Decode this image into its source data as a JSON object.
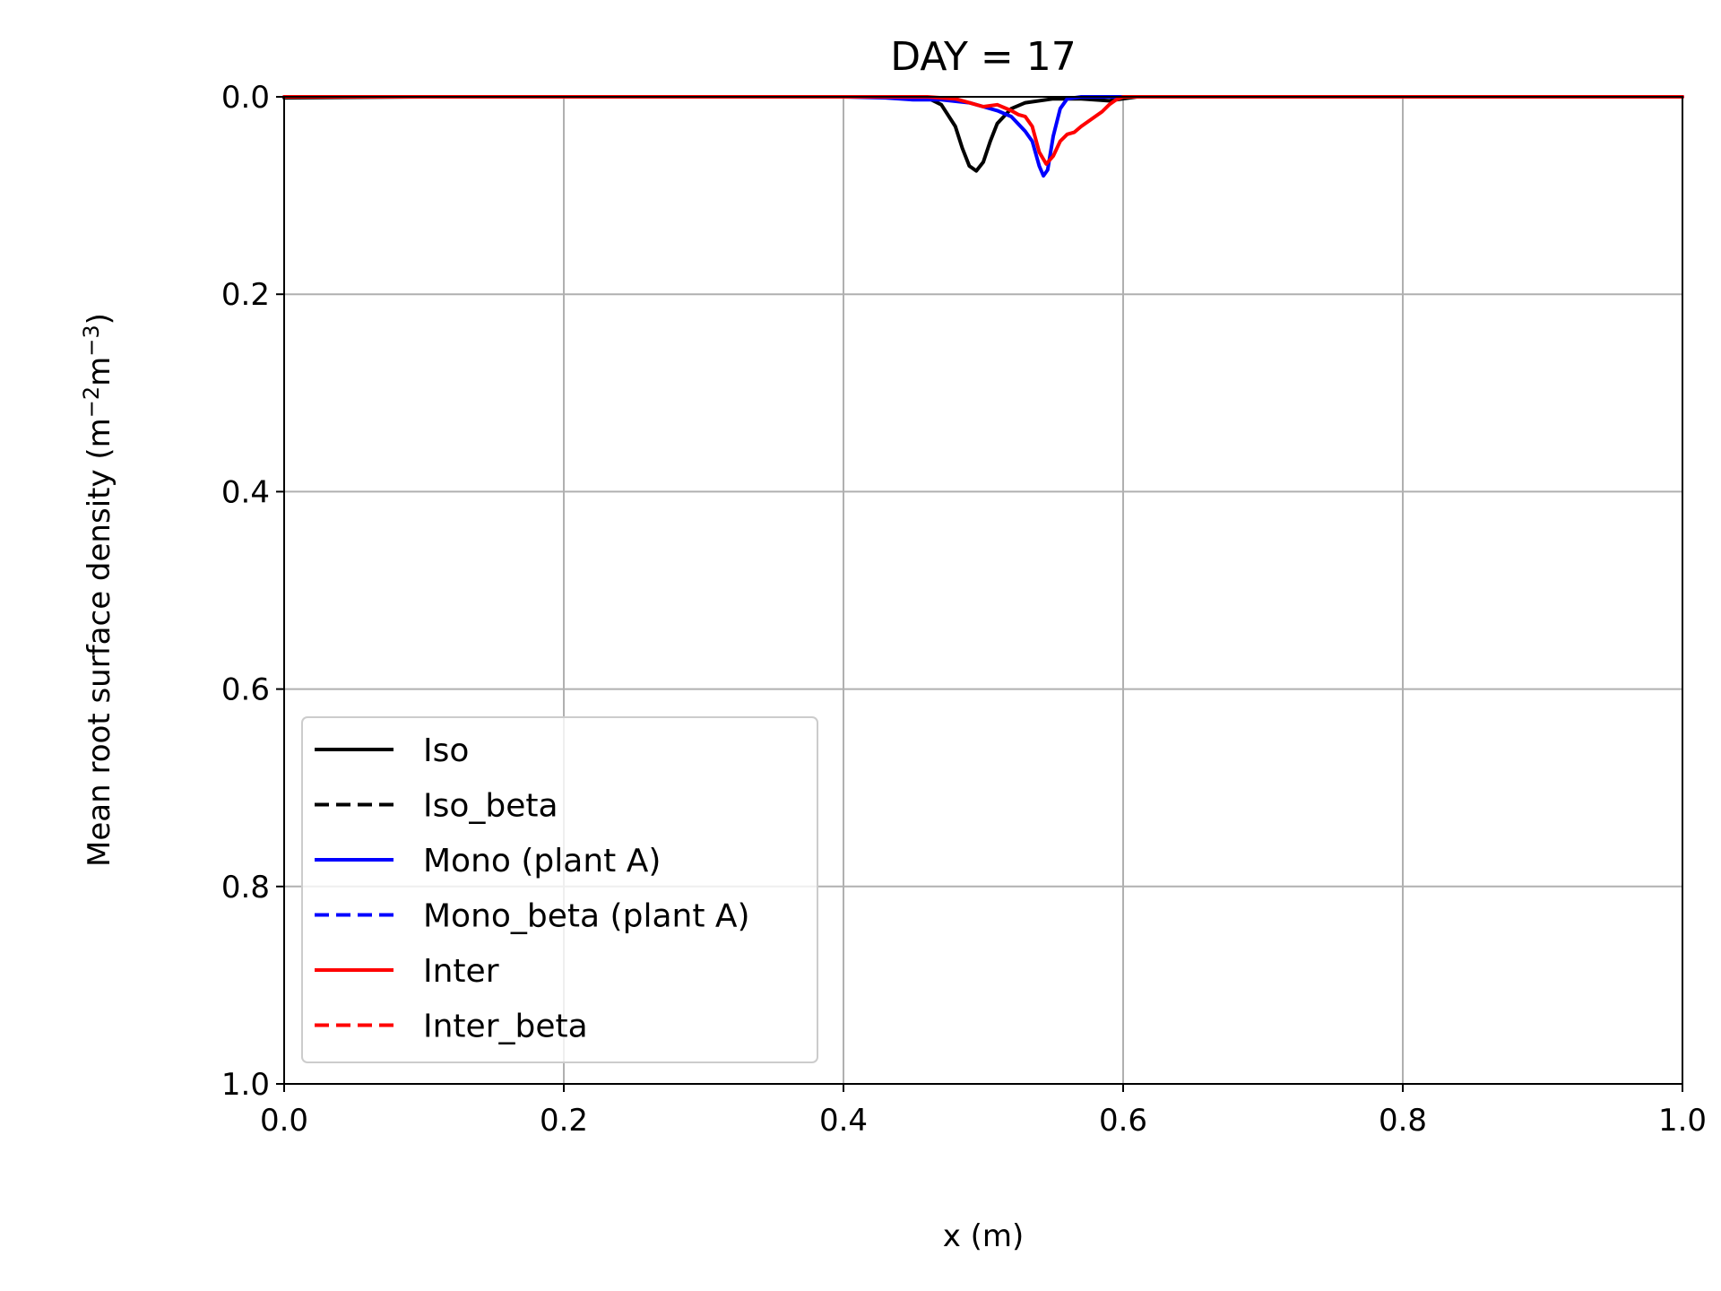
{
  "chart_data": {
    "type": "line",
    "title": "DAY = 17",
    "xlabel": "x (m)",
    "ylabel": {
      "text": "Mean root surface density (m",
      "sup1": "−2",
      "mid": "m",
      "sup2": "−3",
      "end": ")"
    },
    "xlim": [
      0.0,
      1.0
    ],
    "ylim": [
      0.0,
      1.0
    ],
    "y_inverted": true,
    "grid": true,
    "legend_position": "lower-left",
    "xticks": [
      "0.0",
      "0.2",
      "0.4",
      "0.6",
      "0.8",
      "1.0"
    ],
    "yticks": [
      "0.0",
      "0.2",
      "0.4",
      "0.6",
      "0.8",
      "1.0"
    ],
    "series": [
      {
        "name": "Iso",
        "color": "#000000",
        "dash": "solid",
        "x": [
          0.0,
          0.1,
          0.3,
          0.44,
          0.46,
          0.47,
          0.48,
          0.485,
          0.49,
          0.495,
          0.5,
          0.505,
          0.51,
          0.52,
          0.53,
          0.55,
          0.57,
          0.59,
          0.6,
          0.61,
          0.7,
          1.0
        ],
        "y": [
          0.001,
          0.0,
          0.0,
          0.0,
          0.001,
          0.008,
          0.03,
          0.052,
          0.07,
          0.075,
          0.066,
          0.045,
          0.027,
          0.012,
          0.006,
          0.002,
          0.002,
          0.004,
          0.002,
          0.0,
          0.0,
          0.0
        ]
      },
      {
        "name": "Iso_beta",
        "color": "#000000",
        "dash": "dashed",
        "x": [],
        "y": []
      },
      {
        "name": "Mono (plant A)",
        "color": "#0000ff",
        "dash": "solid",
        "x": [
          0.0,
          0.4,
          0.43,
          0.45,
          0.47,
          0.49,
          0.5,
          0.51,
          0.52,
          0.53,
          0.535,
          0.54,
          0.543,
          0.546,
          0.55,
          0.555,
          0.56,
          0.57,
          0.6,
          1.0
        ],
        "y": [
          0.0,
          0.0,
          0.001,
          0.003,
          0.003,
          0.006,
          0.01,
          0.014,
          0.02,
          0.035,
          0.045,
          0.07,
          0.08,
          0.074,
          0.04,
          0.012,
          0.002,
          0.0,
          0.0,
          0.0
        ]
      },
      {
        "name": "Mono_beta (plant A)",
        "color": "#0000ff",
        "dash": "dashed",
        "x": [],
        "y": []
      },
      {
        "name": "Inter",
        "color": "#ff0000",
        "dash": "solid",
        "x": [
          0.0,
          0.1,
          0.3,
          0.46,
          0.48,
          0.49,
          0.5,
          0.51,
          0.52,
          0.525,
          0.53,
          0.535,
          0.54,
          0.545,
          0.55,
          0.555,
          0.56,
          0.565,
          0.57,
          0.575,
          0.58,
          0.585,
          0.59,
          0.595,
          0.6,
          0.61,
          1.0
        ],
        "y": [
          0.0,
          0.0,
          0.0,
          0.0,
          0.002,
          0.006,
          0.01,
          0.008,
          0.014,
          0.018,
          0.02,
          0.03,
          0.056,
          0.068,
          0.06,
          0.045,
          0.038,
          0.036,
          0.03,
          0.025,
          0.02,
          0.015,
          0.008,
          0.003,
          0.0,
          0.0,
          0.0
        ]
      },
      {
        "name": "Inter_beta",
        "color": "#ff0000",
        "dash": "dashed",
        "x": [],
        "y": []
      }
    ]
  }
}
